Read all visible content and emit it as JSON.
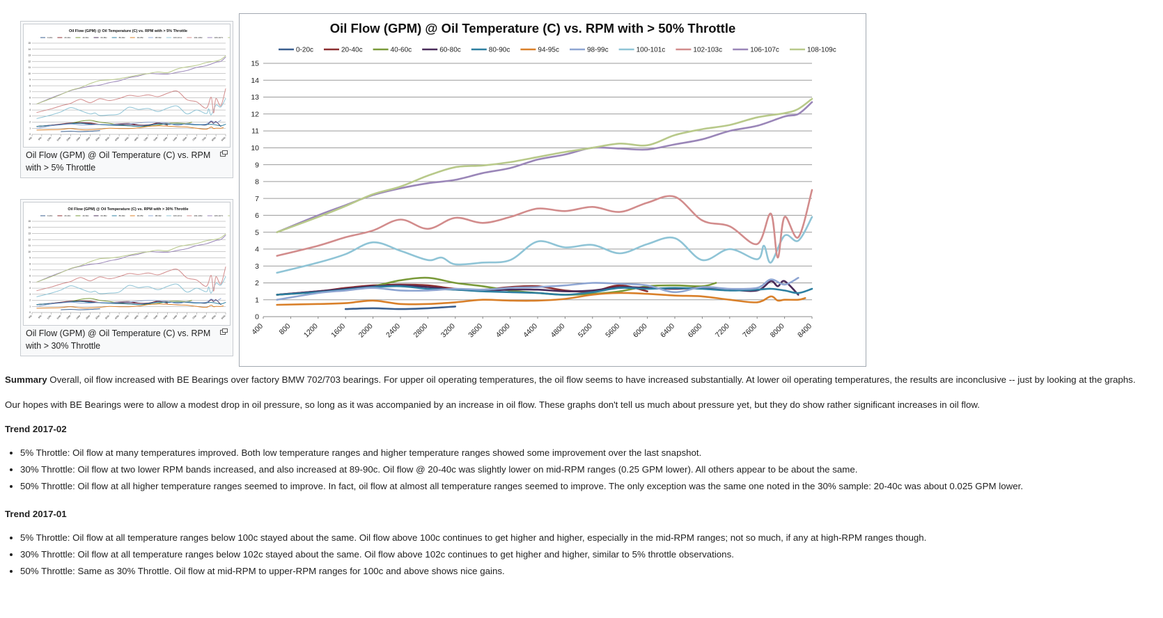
{
  "thumbs": [
    {
      "title": "Oil Flow (GPM) @ Oil Temperature (C) vs. RPM with > 5% Throttle",
      "caption": "Oil Flow (GPM) @ Oil Temperature (C) vs. RPM with > 5% Throttle"
    },
    {
      "title": "Oil Flow (GPM) @ Oil Temperature (C) vs. RPM with > 30% Throttle",
      "caption": "Oil Flow (GPM) @ Oil Temperature (C) vs. RPM with > 30% Throttle"
    }
  ],
  "chart_data": {
    "type": "line",
    "title": "Oil Flow (GPM) @ Oil Temperature (C) vs. RPM with > 50% Throttle",
    "xlabel": "",
    "ylabel": "",
    "xlim": [
      400,
      8400
    ],
    "ylim": [
      0,
      15
    ],
    "x_ticks": [
      400,
      800,
      1200,
      1600,
      2000,
      2400,
      2800,
      3200,
      3600,
      4000,
      4400,
      4800,
      5200,
      5600,
      6000,
      6400,
      6800,
      7200,
      7600,
      8000,
      8400
    ],
    "y_ticks": [
      0,
      1,
      2,
      3,
      4,
      5,
      6,
      7,
      8,
      9,
      10,
      11,
      12,
      13,
      14,
      15
    ],
    "grid": true,
    "legend_position": "top",
    "series": [
      {
        "name": "0-20c",
        "color": "#3a5f8f",
        "points": [
          [
            1600,
            0.45
          ],
          [
            2000,
            0.5
          ],
          [
            2400,
            0.45
          ],
          [
            2800,
            0.5
          ],
          [
            3200,
            0.6
          ]
        ]
      },
      {
        "name": "20-40c",
        "color": "#8b2e30",
        "points": [
          [
            600,
            1.3
          ],
          [
            1200,
            1.5
          ],
          [
            1600,
            1.7
          ],
          [
            2000,
            1.85
          ],
          [
            2400,
            1.9
          ],
          [
            2800,
            1.85
          ],
          [
            3200,
            1.65
          ],
          [
            3600,
            1.6
          ],
          [
            4000,
            1.75
          ],
          [
            4400,
            1.8
          ],
          [
            4800,
            1.55
          ],
          [
            5200,
            1.5
          ],
          [
            5600,
            1.85
          ],
          [
            6000,
            1.5
          ]
        ]
      },
      {
        "name": "40-60c",
        "color": "#7a9a3a",
        "points": [
          [
            600,
            1.3
          ],
          [
            1200,
            1.45
          ],
          [
            1600,
            1.6
          ],
          [
            2000,
            1.8
          ],
          [
            2400,
            2.15
          ],
          [
            2800,
            2.3
          ],
          [
            3200,
            2.0
          ],
          [
            3600,
            1.8
          ],
          [
            4000,
            1.55
          ],
          [
            4400,
            1.4
          ],
          [
            4800,
            1.3
          ],
          [
            5200,
            1.35
          ],
          [
            5600,
            1.5
          ],
          [
            6000,
            1.8
          ],
          [
            6400,
            1.85
          ],
          [
            6800,
            1.8
          ],
          [
            7000,
            2.0
          ]
        ]
      },
      {
        "name": "60-80c",
        "color": "#4a2c5a",
        "points": [
          [
            600,
            1.3
          ],
          [
            1200,
            1.5
          ],
          [
            1600,
            1.65
          ],
          [
            2000,
            1.8
          ],
          [
            2400,
            1.85
          ],
          [
            2800,
            1.75
          ],
          [
            3200,
            1.6
          ],
          [
            3600,
            1.55
          ],
          [
            4000,
            1.6
          ],
          [
            4400,
            1.6
          ],
          [
            4800,
            1.5
          ],
          [
            5200,
            1.55
          ],
          [
            5600,
            1.75
          ],
          [
            6000,
            1.7
          ],
          [
            6400,
            1.65
          ],
          [
            6800,
            1.7
          ],
          [
            7200,
            1.6
          ],
          [
            7600,
            1.55
          ],
          [
            7800,
            2.1
          ],
          [
            7900,
            1.8
          ],
          [
            8000,
            2.1
          ],
          [
            8200,
            1.3
          ]
        ]
      },
      {
        "name": "80-90c",
        "color": "#2d7fa0",
        "points": [
          [
            600,
            1.3
          ],
          [
            1200,
            1.45
          ],
          [
            1600,
            1.6
          ],
          [
            2000,
            1.75
          ],
          [
            2400,
            1.8
          ],
          [
            2800,
            1.65
          ],
          [
            3200,
            1.6
          ],
          [
            3600,
            1.5
          ],
          [
            4000,
            1.45
          ],
          [
            4400,
            1.4
          ],
          [
            4800,
            1.3
          ],
          [
            5200,
            1.45
          ],
          [
            5600,
            1.7
          ],
          [
            6000,
            1.65
          ],
          [
            6400,
            1.7
          ],
          [
            6800,
            1.65
          ],
          [
            7200,
            1.55
          ],
          [
            7600,
            1.6
          ],
          [
            7800,
            1.65
          ],
          [
            8000,
            1.55
          ],
          [
            8200,
            1.4
          ],
          [
            8400,
            1.65
          ]
        ]
      },
      {
        "name": "94-95c",
        "color": "#d9802a",
        "points": [
          [
            600,
            0.7
          ],
          [
            1200,
            0.75
          ],
          [
            1600,
            0.8
          ],
          [
            2000,
            0.95
          ],
          [
            2400,
            0.75
          ],
          [
            2800,
            0.75
          ],
          [
            3200,
            0.85
          ],
          [
            3600,
            1.0
          ],
          [
            4000,
            0.95
          ],
          [
            4400,
            0.95
          ],
          [
            4800,
            1.05
          ],
          [
            5200,
            1.3
          ],
          [
            5600,
            1.4
          ],
          [
            6000,
            1.35
          ],
          [
            6400,
            1.25
          ],
          [
            6800,
            1.2
          ],
          [
            7200,
            1.0
          ],
          [
            7600,
            0.85
          ],
          [
            7800,
            1.2
          ],
          [
            7900,
            0.95
          ],
          [
            8000,
            1.0
          ],
          [
            8200,
            1.0
          ],
          [
            8300,
            1.1
          ]
        ]
      },
      {
        "name": "98-99c",
        "color": "#8ea5d2",
        "points": [
          [
            600,
            1.0
          ],
          [
            1200,
            1.4
          ],
          [
            1600,
            1.55
          ],
          [
            2000,
            1.7
          ],
          [
            2400,
            1.55
          ],
          [
            2800,
            1.55
          ],
          [
            3200,
            1.65
          ],
          [
            3600,
            1.6
          ],
          [
            4000,
            1.7
          ],
          [
            4400,
            1.75
          ],
          [
            4800,
            1.85
          ],
          [
            5200,
            2.0
          ],
          [
            5600,
            1.95
          ],
          [
            6000,
            1.85
          ],
          [
            6400,
            1.45
          ],
          [
            6800,
            1.75
          ],
          [
            7200,
            1.65
          ],
          [
            7600,
            1.7
          ],
          [
            7800,
            2.2
          ],
          [
            8000,
            1.9
          ],
          [
            8200,
            2.3
          ]
        ]
      },
      {
        "name": "100-101c",
        "color": "#8fc4d6",
        "points": [
          [
            600,
            2.6
          ],
          [
            1200,
            3.2
          ],
          [
            1600,
            3.7
          ],
          [
            2000,
            4.4
          ],
          [
            2400,
            3.9
          ],
          [
            2800,
            3.35
          ],
          [
            3000,
            3.5
          ],
          [
            3200,
            3.1
          ],
          [
            3600,
            3.2
          ],
          [
            4000,
            3.35
          ],
          [
            4400,
            4.45
          ],
          [
            4800,
            4.1
          ],
          [
            5200,
            4.25
          ],
          [
            5600,
            3.75
          ],
          [
            6000,
            4.3
          ],
          [
            6400,
            4.65
          ],
          [
            6800,
            3.35
          ],
          [
            7200,
            4.0
          ],
          [
            7600,
            3.4
          ],
          [
            7700,
            4.2
          ],
          [
            7800,
            3.2
          ],
          [
            8000,
            4.8
          ],
          [
            8200,
            4.5
          ],
          [
            8400,
            5.9
          ]
        ]
      },
      {
        "name": "102-103c",
        "color": "#d28c8c",
        "points": [
          [
            600,
            3.6
          ],
          [
            1200,
            4.2
          ],
          [
            1600,
            4.7
          ],
          [
            2000,
            5.1
          ],
          [
            2400,
            5.75
          ],
          [
            2800,
            5.2
          ],
          [
            3200,
            5.85
          ],
          [
            3600,
            5.55
          ],
          [
            4000,
            5.9
          ],
          [
            4400,
            6.4
          ],
          [
            4800,
            6.25
          ],
          [
            5200,
            6.5
          ],
          [
            5600,
            6.2
          ],
          [
            6000,
            6.75
          ],
          [
            6400,
            7.1
          ],
          [
            6800,
            5.7
          ],
          [
            7200,
            5.35
          ],
          [
            7600,
            4.3
          ],
          [
            7800,
            6.1
          ],
          [
            7900,
            3.5
          ],
          [
            8000,
            5.9
          ],
          [
            8200,
            4.7
          ],
          [
            8400,
            7.5
          ]
        ]
      },
      {
        "name": "106-107c",
        "color": "#9a86b8",
        "points": [
          [
            600,
            5.0
          ],
          [
            1200,
            6.0
          ],
          [
            1600,
            6.6
          ],
          [
            2000,
            7.2
          ],
          [
            2400,
            7.6
          ],
          [
            2800,
            7.9
          ],
          [
            3200,
            8.1
          ],
          [
            3600,
            8.5
          ],
          [
            4000,
            8.8
          ],
          [
            4400,
            9.3
          ],
          [
            4800,
            9.6
          ],
          [
            5200,
            10.0
          ],
          [
            5600,
            9.95
          ],
          [
            6000,
            9.9
          ],
          [
            6400,
            10.2
          ],
          [
            6800,
            10.5
          ],
          [
            7200,
            11.0
          ],
          [
            7600,
            11.3
          ],
          [
            8000,
            11.85
          ],
          [
            8200,
            12.0
          ],
          [
            8400,
            12.7
          ]
        ]
      },
      {
        "name": "108-109c",
        "color": "#b8c98a",
        "points": [
          [
            600,
            5.0
          ],
          [
            1200,
            5.9
          ],
          [
            1600,
            6.55
          ],
          [
            2000,
            7.25
          ],
          [
            2400,
            7.7
          ],
          [
            2800,
            8.35
          ],
          [
            3200,
            8.85
          ],
          [
            3600,
            8.95
          ],
          [
            4000,
            9.15
          ],
          [
            4400,
            9.45
          ],
          [
            4800,
            9.75
          ],
          [
            5200,
            10.0
          ],
          [
            5600,
            10.25
          ],
          [
            6000,
            10.15
          ],
          [
            6400,
            10.75
          ],
          [
            6800,
            11.1
          ],
          [
            7200,
            11.35
          ],
          [
            7600,
            11.8
          ],
          [
            8000,
            12.05
          ],
          [
            8200,
            12.3
          ],
          [
            8400,
            12.9
          ]
        ]
      }
    ]
  },
  "article": {
    "summary_label": "Summary",
    "summary_text": " Overall, oil flow increased with BE Bearings over factory BMW 702/703 bearings. For upper oil operating temperatures, the oil flow seems to have increased substantially. At lower oil operating temperatures, the results are inconclusive -- just by looking at the graphs.",
    "hopes": "Our hopes with BE Bearings were to allow a modest drop in oil pressure, so long as it was accompanied by an increase in oil flow. These graphs don't tell us much about pressure yet, but they do show rather significant increases in oil flow.",
    "trend1_heading": "Trend 2017-02",
    "trend1_items": [
      "5% Throttle: Oil flow at many temperatures improved. Both low temperature ranges and higher temperature ranges showed some improvement over the last snapshot.",
      "30% Throttle: Oil flow at two lower RPM bands increased, and also increased at 89-90c. Oil flow @ 20-40c was slightly lower on mid-RPM ranges (0.25 GPM lower). All others appear to be about the same.",
      "50% Throttle: Oil flow at all higher temperature ranges seemed to improve. In fact, oil flow at almost all temperature ranges seemed to improve. The only exception was the same one noted in the 30% sample: 20-40c was about 0.025 GPM lower."
    ],
    "trend2_heading": "Trend 2017-01",
    "trend2_items": [
      "5% Throttle: Oil flow at all temperature ranges below 100c stayed about the same. Oil flow above 100c continues to get higher and higher, especially in the mid-RPM ranges; not so much, if any at high-RPM ranges though.",
      "30% Throttle: Oil flow at all temperature ranges below 102c stayed about the same. Oil flow above 102c continues to get higher and higher, similar to 5% throttle observations.",
      "50% Throttle: Same as 30% Throttle. Oil flow at mid-RPM to upper-RPM ranges for 100c and above shows nice gains."
    ]
  }
}
